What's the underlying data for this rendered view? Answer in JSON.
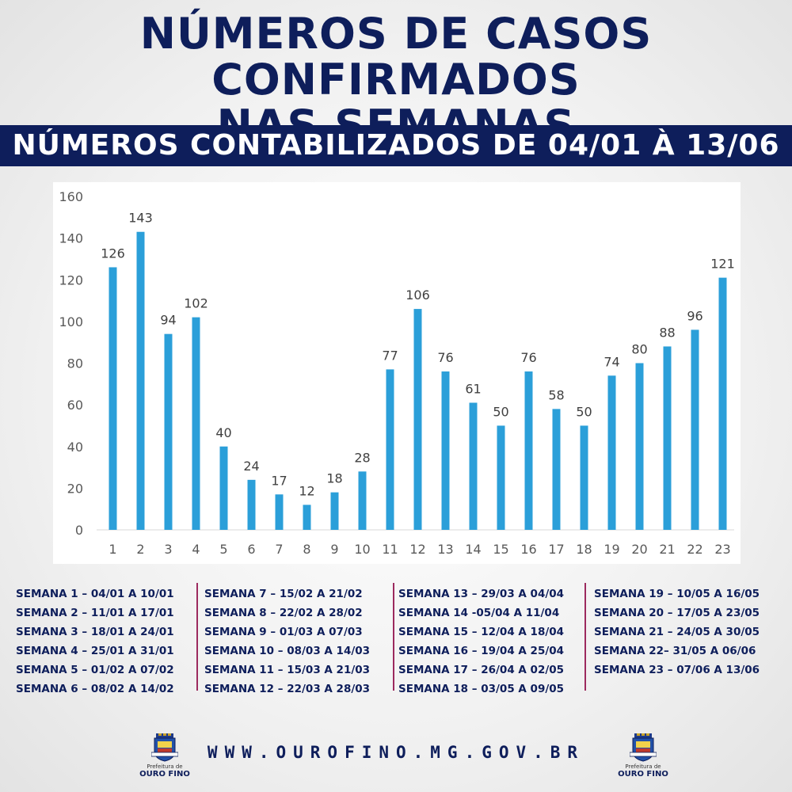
{
  "header": {
    "title_line1": "NÚMEROS DE CASOS CONFIRMADOS",
    "title_line2": "NAS SEMANAS",
    "banner": "NÚMEROS CONTABILIZADOS DE 04/01 À 13/06"
  },
  "chart_data": {
    "type": "bar",
    "categories": [
      "1",
      "2",
      "3",
      "4",
      "5",
      "6",
      "7",
      "8",
      "9",
      "10",
      "11",
      "12",
      "13",
      "14",
      "15",
      "16",
      "17",
      "18",
      "19",
      "20",
      "21",
      "22",
      "23"
    ],
    "values": [
      126,
      143,
      94,
      102,
      40,
      24,
      17,
      12,
      18,
      28,
      77,
      106,
      76,
      61,
      50,
      76,
      58,
      50,
      74,
      80,
      88,
      96,
      121
    ],
    "ylim": [
      0,
      160
    ],
    "yticks": [
      0,
      20,
      40,
      60,
      80,
      100,
      120,
      140,
      160
    ],
    "grid": false,
    "bar_color": "#2b9fd9",
    "title": "",
    "xlabel": "",
    "ylabel": ""
  },
  "legend": {
    "columns": [
      [
        "SEMANA 1 – 04/01 A 10/01",
        "SEMANA 2 – 11/01 A 17/01",
        "SEMANA 3 – 18/01 A 24/01",
        "SEMANA 4 – 25/01 A 31/01",
        "SEMANA 5 – 01/02 A 07/02",
        "SEMANA 6 – 08/02 A 14/02"
      ],
      [
        "SEMANA 7 – 15/02 A 21/02",
        "SEMANA 8 – 22/02 A 28/02",
        "SEMANA 9 – 01/03 A 07/03",
        "SEMANA 10 – 08/03 A 14/03",
        "SEMANA 11 – 15/03 A 21/03",
        "SEMANA 12 – 22/03 A 28/03"
      ],
      [
        "SEMANA  13  –  29/03  A  04/04",
        "SEMANA   14   -05/04   A   11/04",
        "SEMANA   15   –   12/04  A  18/04",
        "SEMANA   16   –   19/04  A  25/04",
        "SEMANA   17   –   26/04  A  02/05",
        "SEMANA 18 – 03/05 A 09/05"
      ],
      [
        "SEMANA 19 – 10/05 A 16/05",
        "SEMANA 20 – 17/05 A 23/05",
        "SEMANA 21 – 24/05 A 30/05",
        "SEMANA 22– 31/05 A 06/06",
        "SEMANA 23 – 07/06 A 13/06"
      ]
    ]
  },
  "footer": {
    "url": "WWW.OUROFINO.MG.GOV.BR",
    "logo_small": "Prefeitura de",
    "logo_big": "OURO FINO",
    "logo_icon": "city-coat-of-arms-icon",
    "accent": "#0e1e5b",
    "divider_color": "#9c2a5e"
  }
}
